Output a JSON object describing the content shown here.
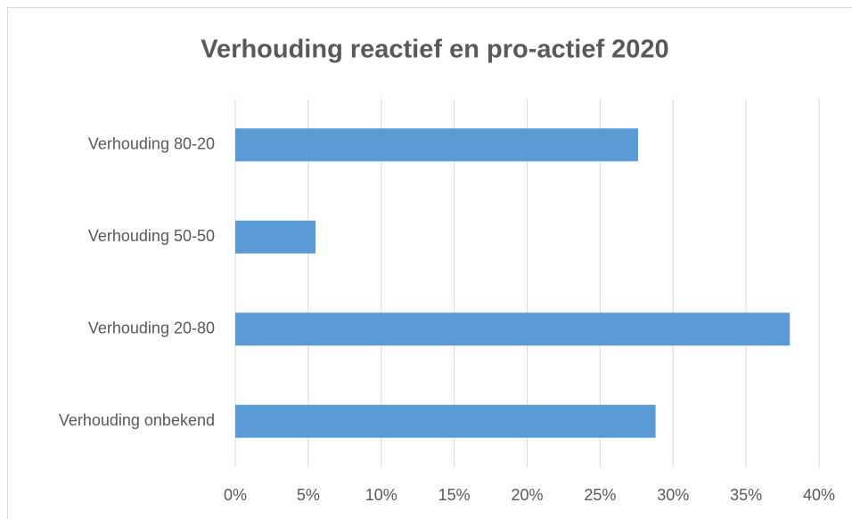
{
  "chart_data": {
    "type": "bar",
    "orientation": "horizontal",
    "title": "Verhouding reactief en pro-actief 2020",
    "categories": [
      "Verhouding 80-20",
      "Verhouding 50-50",
      "Verhouding 20-80",
      "Verhouding onbekend"
    ],
    "values": [
      27.6,
      5.5,
      38.0,
      28.8
    ],
    "color": "#5b9bd5",
    "xlim": [
      0,
      40
    ],
    "xticks": [
      {
        "value": 0,
        "label": "0%"
      },
      {
        "value": 5,
        "label": "5%"
      },
      {
        "value": 10,
        "label": "10%"
      },
      {
        "value": 15,
        "label": "15%"
      },
      {
        "value": 20,
        "label": "20%"
      },
      {
        "value": 25,
        "label": "25%"
      },
      {
        "value": 30,
        "label": "30%"
      },
      {
        "value": 35,
        "label": "35%"
      },
      {
        "value": 40,
        "label": "40%"
      }
    ],
    "grid": true
  }
}
